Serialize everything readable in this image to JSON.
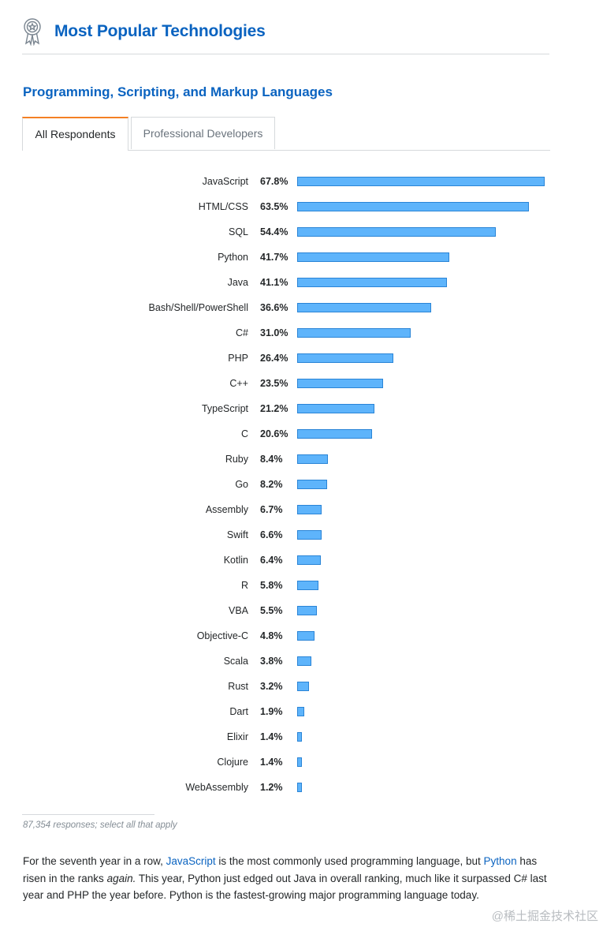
{
  "header": {
    "title": "Most Popular Technologies",
    "icon": "award-ribbon-icon"
  },
  "chart_title": "Programming, Scripting, and Markup Languages",
  "tabs": [
    {
      "label": "All Respondents",
      "active": true
    },
    {
      "label": "Professional Developers",
      "active": false
    }
  ],
  "chart_data": {
    "type": "bar",
    "orientation": "horizontal",
    "title": "Programming, Scripting, and Markup Languages",
    "categories": [
      "JavaScript",
      "HTML/CSS",
      "SQL",
      "Python",
      "Java",
      "Bash/Shell/PowerShell",
      "C#",
      "PHP",
      "C++",
      "TypeScript",
      "C",
      "Ruby",
      "Go",
      "Assembly",
      "Swift",
      "Kotlin",
      "R",
      "VBA",
      "Objective-C",
      "Scala",
      "Rust",
      "Dart",
      "Elixir",
      "Clojure",
      "WebAssembly"
    ],
    "values": [
      67.8,
      63.5,
      54.4,
      41.7,
      41.1,
      36.6,
      31.0,
      26.4,
      23.5,
      21.2,
      20.6,
      8.4,
      8.2,
      6.7,
      6.6,
      6.4,
      5.8,
      5.5,
      4.8,
      3.8,
      3.2,
      1.9,
      1.4,
      1.4,
      1.2
    ],
    "labels": [
      "67.8%",
      "63.5%",
      "54.4%",
      "41.7%",
      "41.1%",
      "36.6%",
      "31.0%",
      "26.4%",
      "23.5%",
      "21.2%",
      "20.6%",
      "8.4%",
      "8.2%",
      "6.7%",
      "6.6%",
      "6.4%",
      "5.8%",
      "5.5%",
      "4.8%",
      "3.8%",
      "3.2%",
      "1.9%",
      "1.4%",
      "1.4%",
      "1.2%"
    ],
    "xlim": [
      0,
      67.8
    ],
    "grid": false,
    "bar_color": "#5eb4fb",
    "bar_border_color": "#2a84d6"
  },
  "footnote": "87,354 responses; select all that apply",
  "paragraph": {
    "t1": "For the seventh year in a row, ",
    "link1": "JavaScript",
    "t2": " is the most commonly used programming language, but ",
    "link2": "Python",
    "t3": " has risen in the ranks ",
    "emph": "again.",
    "t4": " This year, Python just edged out Java in overall ranking, much like it surpassed C# last year and PHP the year before. Python is the fastest-growing major programming language today."
  },
  "watermark": "@稀土掘金技术社区"
}
